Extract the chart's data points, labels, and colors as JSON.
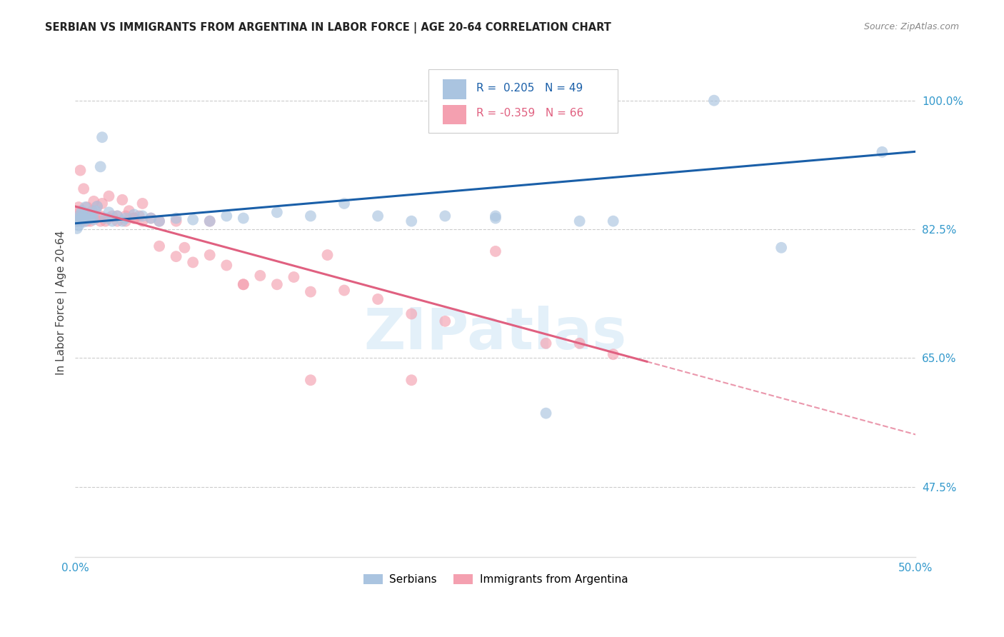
{
  "title": "SERBIAN VS IMMIGRANTS FROM ARGENTINA IN LABOR FORCE | AGE 20-64 CORRELATION CHART",
  "source": "Source: ZipAtlas.com",
  "ylabel": "In Labor Force | Age 20-64",
  "yticks": [
    0.475,
    0.65,
    0.825,
    1.0
  ],
  "ytick_labels": [
    "47.5%",
    "65.0%",
    "82.5%",
    "100.0%"
  ],
  "xlim": [
    0.0,
    0.5
  ],
  "ylim": [
    0.38,
    1.07
  ],
  "R_serbian": 0.205,
  "N_serbian": 49,
  "R_argentina": -0.359,
  "N_argentina": 66,
  "color_serbian": "#aac4e0",
  "color_argentina": "#f4a0b0",
  "line_color_serbian": "#1a5fa8",
  "line_color_argentina": "#e06080",
  "watermark_text": "ZIPatlas",
  "background_color": "#ffffff",
  "grid_color": "#cccccc",
  "serbian_x": [
    0.001,
    0.001,
    0.002,
    0.002,
    0.003,
    0.003,
    0.004,
    0.004,
    0.005,
    0.005,
    0.006,
    0.007,
    0.008,
    0.009,
    0.01,
    0.011,
    0.012,
    0.013,
    0.015,
    0.016,
    0.018,
    0.02,
    0.022,
    0.025,
    0.028,
    0.03,
    0.035,
    0.04,
    0.045,
    0.05,
    0.06,
    0.07,
    0.08,
    0.09,
    0.1,
    0.12,
    0.14,
    0.16,
    0.18,
    0.2,
    0.22,
    0.25,
    0.28,
    0.32,
    0.38,
    0.42,
    0.25,
    0.3,
    0.48
  ],
  "serbian_y": [
    0.836,
    0.826,
    0.84,
    0.83,
    0.845,
    0.838,
    0.842,
    0.85,
    0.835,
    0.843,
    0.855,
    0.838,
    0.846,
    0.84,
    0.841,
    0.838,
    0.85,
    0.856,
    0.91,
    0.95,
    0.84,
    0.848,
    0.836,
    0.843,
    0.836,
    0.84,
    0.845,
    0.843,
    0.84,
    0.836,
    0.84,
    0.838,
    0.836,
    0.843,
    0.84,
    0.848,
    0.843,
    0.86,
    0.843,
    0.836,
    0.843,
    0.84,
    0.575,
    0.836,
    1.0,
    0.8,
    0.843,
    0.836,
    0.93
  ],
  "argentina_x": [
    0.001,
    0.001,
    0.002,
    0.002,
    0.003,
    0.003,
    0.004,
    0.004,
    0.005,
    0.006,
    0.007,
    0.008,
    0.009,
    0.01,
    0.011,
    0.012,
    0.013,
    0.015,
    0.016,
    0.018,
    0.02,
    0.022,
    0.025,
    0.028,
    0.03,
    0.032,
    0.035,
    0.038,
    0.04,
    0.045,
    0.05,
    0.06,
    0.065,
    0.07,
    0.08,
    0.09,
    0.1,
    0.11,
    0.12,
    0.13,
    0.14,
    0.15,
    0.16,
    0.18,
    0.2,
    0.22,
    0.25,
    0.28,
    0.3,
    0.32,
    0.003,
    0.005,
    0.007,
    0.01,
    0.015,
    0.02,
    0.025,
    0.03,
    0.035,
    0.04,
    0.05,
    0.06,
    0.08,
    0.1,
    0.14,
    0.2
  ],
  "argentina_y": [
    0.836,
    0.842,
    0.838,
    0.855,
    0.843,
    0.85,
    0.84,
    0.836,
    0.843,
    0.84,
    0.855,
    0.843,
    0.836,
    0.85,
    0.863,
    0.84,
    0.856,
    0.843,
    0.86,
    0.836,
    0.87,
    0.843,
    0.843,
    0.865,
    0.836,
    0.85,
    0.84,
    0.843,
    0.86,
    0.84,
    0.802,
    0.788,
    0.8,
    0.78,
    0.79,
    0.776,
    0.75,
    0.762,
    0.75,
    0.76,
    0.74,
    0.79,
    0.742,
    0.73,
    0.71,
    0.7,
    0.795,
    0.67,
    0.67,
    0.655,
    0.905,
    0.88,
    0.836,
    0.843,
    0.836,
    0.84,
    0.836,
    0.843,
    0.84,
    0.836,
    0.836,
    0.836,
    0.836,
    0.75,
    0.62,
    0.62
  ]
}
